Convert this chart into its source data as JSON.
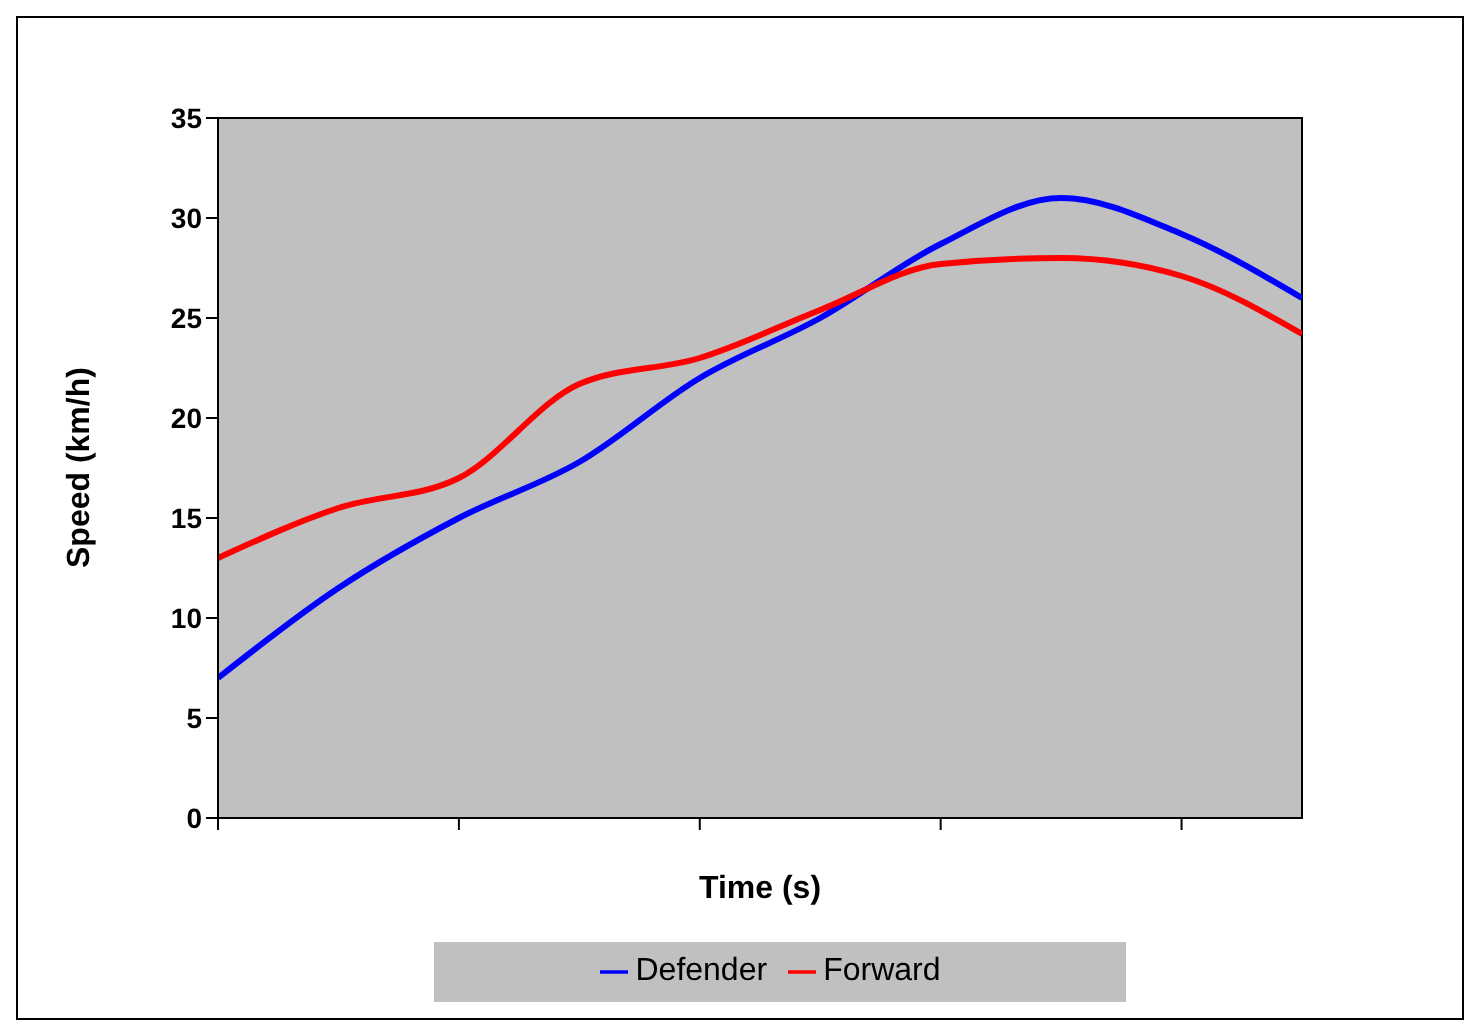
{
  "chart_data": {
    "type": "line",
    "xlabel": "Time (s)",
    "ylabel": "Speed (km/h)",
    "categories": [
      null,
      null,
      null,
      null,
      null,
      null,
      null,
      null,
      null,
      null
    ],
    "series": [
      {
        "name": "Defender",
        "color": "#0000ff",
        "values": [
          7,
          11.5,
          15,
          17.8,
          22,
          25,
          28.7,
          31,
          29.2,
          26
        ]
      },
      {
        "name": "Forward",
        "color": "#ff0000",
        "values": [
          13,
          15.5,
          17,
          21.7,
          23,
          25.4,
          27.7,
          28,
          27.1,
          24.2
        ]
      }
    ],
    "ylim": [
      0,
      35
    ],
    "yticks": [
      0,
      5,
      10,
      15,
      20,
      25,
      30,
      35
    ],
    "legend": "bottom",
    "marker": "none",
    "line_style": "solid"
  }
}
